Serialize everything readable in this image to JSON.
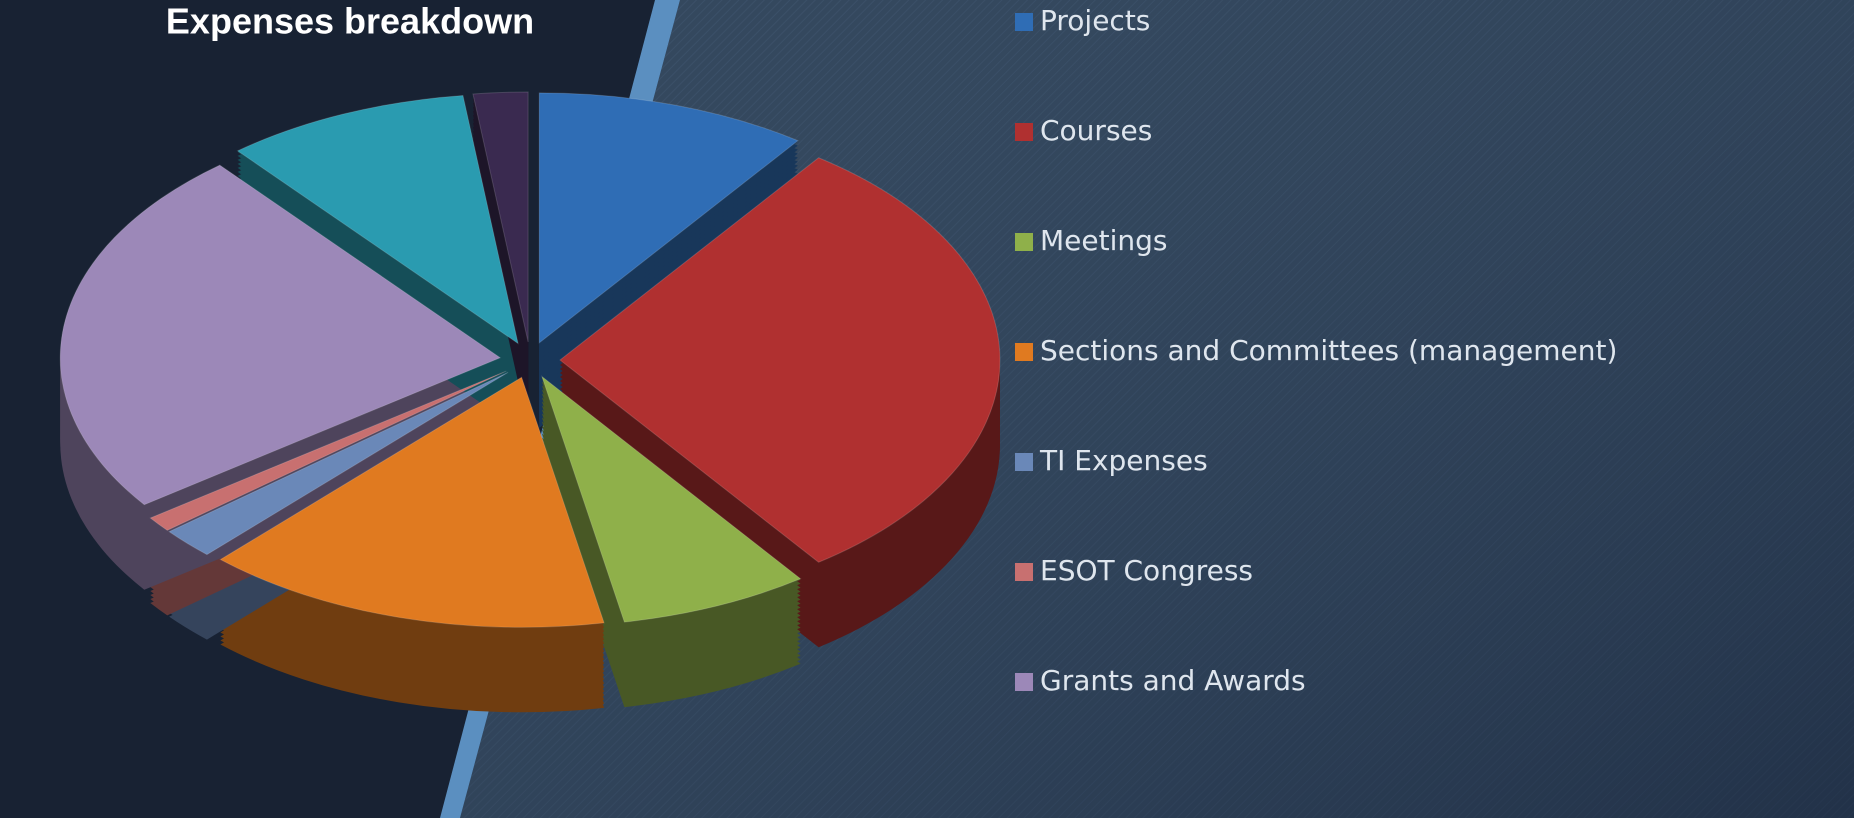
{
  "chart_data": {
    "type": "pie",
    "title": "Expenses breakdown",
    "categories": [
      "Projects",
      "Courses",
      "Meetings",
      "Sections and Committees (management)",
      "TI Expenses",
      "ESOT Congress",
      "Grants and Awards",
      null,
      null
    ],
    "values": [
      10,
      30,
      7,
      15,
      2,
      1,
      24,
      9,
      2
    ],
    "colors": [
      "#2f6db5",
      "#b03030",
      "#8fb04a",
      "#e07a20",
      "#6a88b8",
      "#c87070",
      "#9c88b8",
      "#2a9bb0",
      "#3a2a50"
    ],
    "legend": "right"
  }
}
